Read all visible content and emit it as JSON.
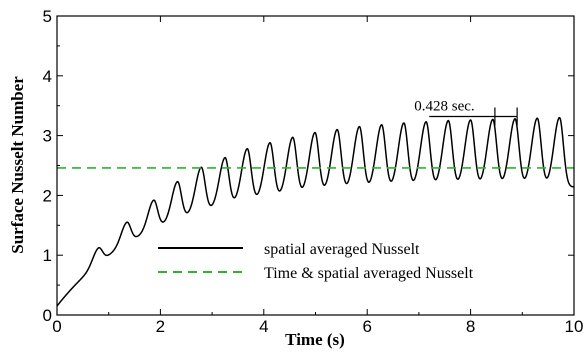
{
  "chart_data": {
    "type": "line",
    "title": "",
    "xlabel": "Time (s)",
    "ylabel": "Surface Nusselt Number",
    "xlim": [
      0,
      10
    ],
    "ylim": [
      0,
      5
    ],
    "xticks": [
      0,
      2,
      4,
      6,
      8,
      10
    ],
    "yticks": [
      0,
      1,
      2,
      3,
      4,
      5
    ],
    "xtick_labels": [
      "0",
      "2",
      "4",
      "6",
      "8",
      "10"
    ],
    "ytick_labels": [
      "0",
      "1",
      "2",
      "3",
      "4",
      "5"
    ],
    "grid": false,
    "legend_placement": "lower-center",
    "series": [
      {
        "name": "spatial averaged Nusselt",
        "color": "#000000",
        "style": "solid",
        "base_start": 0.15,
        "base_end": 2.15,
        "base_rate": 0.55,
        "peaks": [
          {
            "t": 0.8,
            "v": 1.12
          },
          {
            "t": 1.35,
            "v": 1.55
          },
          {
            "t": 1.87,
            "v": 1.92
          },
          {
            "t": 2.33,
            "v": 2.23
          },
          {
            "t": 2.79,
            "v": 2.47
          },
          {
            "t": 3.25,
            "v": 2.63
          },
          {
            "t": 3.68,
            "v": 2.78
          },
          {
            "t": 4.12,
            "v": 2.88
          },
          {
            "t": 4.56,
            "v": 2.97
          },
          {
            "t": 4.99,
            "v": 3.05
          },
          {
            "t": 5.42,
            "v": 3.1
          },
          {
            "t": 5.85,
            "v": 3.15
          },
          {
            "t": 6.28,
            "v": 3.18
          },
          {
            "t": 6.71,
            "v": 3.21
          },
          {
            "t": 7.14,
            "v": 3.23
          },
          {
            "t": 7.57,
            "v": 3.25
          },
          {
            "t": 8.0,
            "v": 3.26
          },
          {
            "t": 8.43,
            "v": 3.27
          },
          {
            "t": 8.86,
            "v": 3.28
          },
          {
            "t": 9.29,
            "v": 3.29
          },
          {
            "t": 9.72,
            "v": 3.3
          }
        ]
      },
      {
        "name": "Time & spatial averaged Nusselt",
        "color": "#2db52d",
        "style": "dashed",
        "y_constant": 2.46
      }
    ],
    "annotation": {
      "text": "0.428 sec.",
      "x_start": 8.47,
      "x_end": 8.9,
      "y": 3.32,
      "label_x_start": 7.2
    }
  }
}
